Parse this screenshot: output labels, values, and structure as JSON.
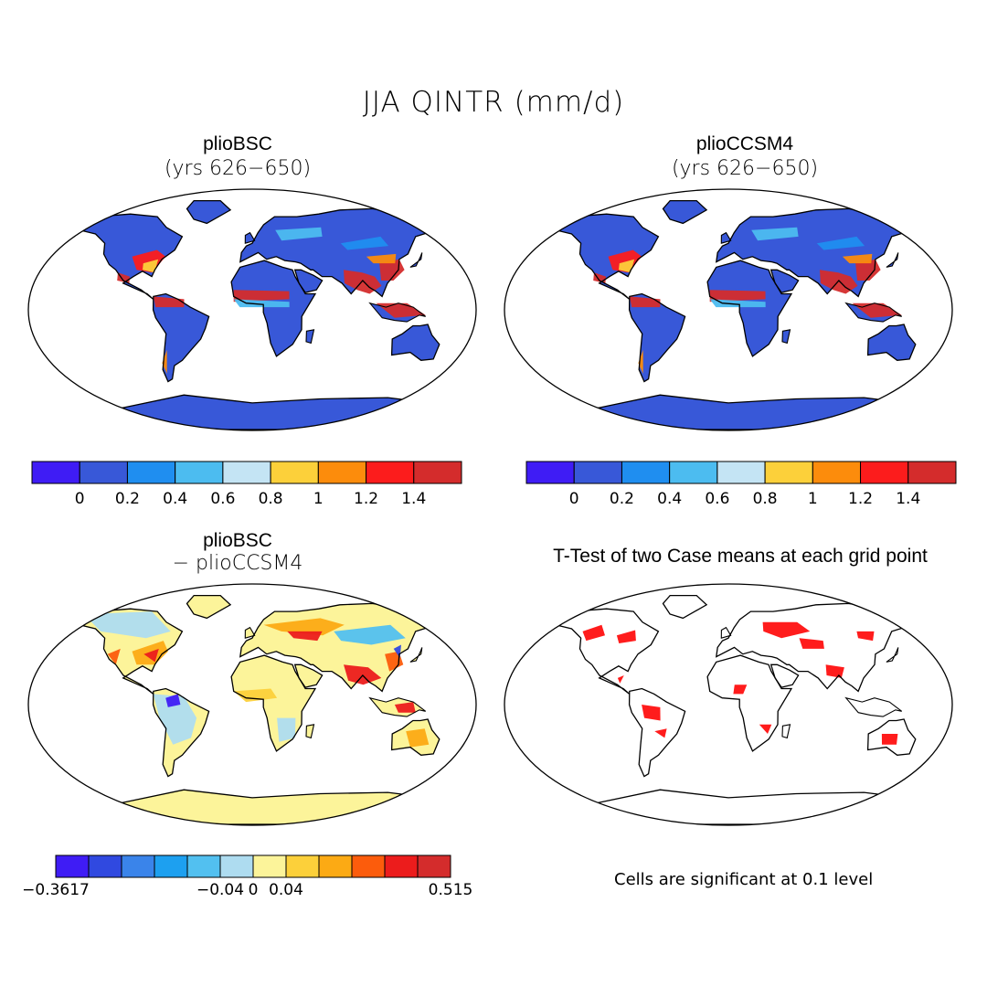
{
  "main_title": "JJA QINTR (mm/d)",
  "panels": [
    {
      "title": "plioBSC",
      "subtitle": "(yrs 626−650)"
    },
    {
      "title": "plioCCSM4",
      "subtitle": "(yrs 626−650)"
    },
    {
      "title": "plioBSC",
      "subtitle": "− plioCCSM4"
    },
    {
      "title": "T-Test of two Case means at each grid point",
      "subtitle": ""
    }
  ],
  "colorbar_top": {
    "colors": [
      "#3f1cf5",
      "#3858d8",
      "#1f8ef0",
      "#4cbcf0",
      "#c4e4f4",
      "#fcd03a",
      "#fc8c0c",
      "#fc1c1c",
      "#d42c2c"
    ],
    "labels": [
      "0",
      "0.2",
      "0.4",
      "0.6",
      "0.8",
      "1",
      "1.2",
      "1.4"
    ]
  },
  "colorbar_diff": {
    "colors": [
      "#3f1cf5",
      "#3049e0",
      "#3a84ea",
      "#1da0f0",
      "#52c0f0",
      "#aedcf0",
      "#fcf49a",
      "#fcd03a",
      "#fcaa14",
      "#fc5c0c",
      "#ec1c1c",
      "#d42c2c"
    ],
    "labels": [
      "−0.3617",
      "−0.04",
      "0",
      "0.04",
      "0.515"
    ]
  },
  "significance_note": "Cells are significant at 0.1 level"
}
